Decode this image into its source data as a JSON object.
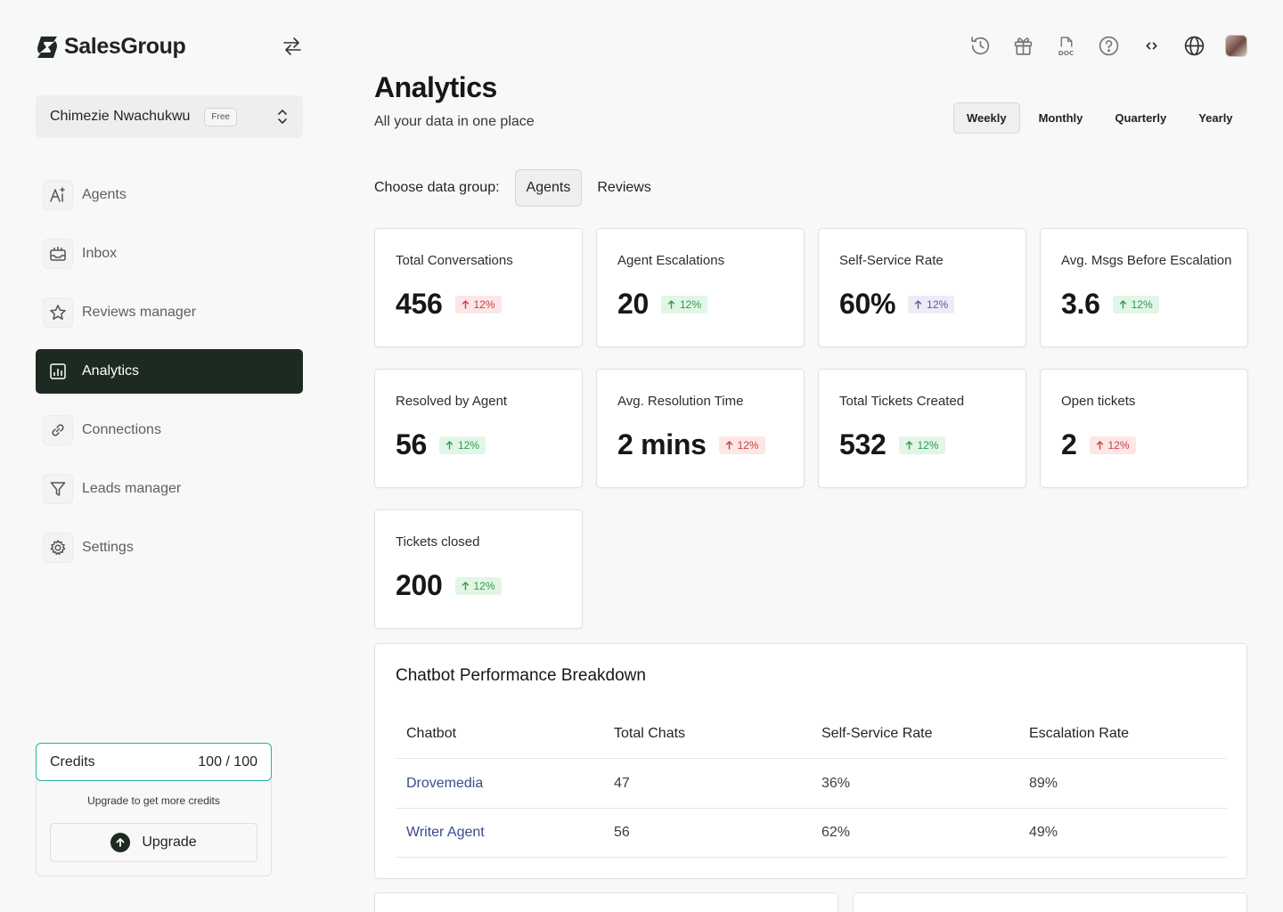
{
  "brand": {
    "name": "SalesGroup"
  },
  "workspace": {
    "name": "Chimezie Nwachukwu",
    "plan": "Free"
  },
  "nav": [
    {
      "label": "Agents",
      "icon": "ai-text-icon"
    },
    {
      "label": "Inbox",
      "icon": "inbox-icon"
    },
    {
      "label": "Reviews manager",
      "icon": "star-icon"
    },
    {
      "label": "Analytics",
      "icon": "analytics-icon",
      "active": true
    },
    {
      "label": "Connections",
      "icon": "link-icon"
    },
    {
      "label": "Leads manager",
      "icon": "filter-icon"
    },
    {
      "label": "Settings",
      "icon": "gear-icon"
    }
  ],
  "credits": {
    "label": "Credits",
    "value": "100 / 100",
    "note": "Upgrade to get more credits",
    "upgrade_label": "Upgrade"
  },
  "top_icons": [
    "history-icon",
    "gift-icon",
    "doc-icon",
    "help-icon",
    "code-icon",
    "globe-icon",
    "avatar"
  ],
  "header": {
    "title": "Analytics",
    "subtitle": "All your data in one place"
  },
  "periods": {
    "options": [
      "Weekly",
      "Monthly",
      "Quarterly",
      "Yearly"
    ],
    "selected": "Weekly"
  },
  "data_group": {
    "label": "Choose data group:",
    "options": [
      "Agents",
      "Reviews"
    ],
    "selected": "Agents"
  },
  "metrics": [
    {
      "title": "Total Conversations",
      "value": "456",
      "change": "12%",
      "tone": "red"
    },
    {
      "title": "Agent Escalations",
      "value": "20",
      "change": "12%",
      "tone": "green"
    },
    {
      "title": "Self-Service Rate",
      "value": "60%",
      "change": "12%",
      "tone": "purple"
    },
    {
      "title": "Avg. Msgs Before Escalation",
      "value": "3.6",
      "change": "12%",
      "tone": "green"
    },
    {
      "title": "Resolved by Agent",
      "value": "56",
      "change": "12%",
      "tone": "green"
    },
    {
      "title": "Avg. Resolution Time",
      "value": "2 mins",
      "change": "12%",
      "tone": "red"
    },
    {
      "title": "Total Tickets Created",
      "value": "532",
      "change": "12%",
      "tone": "green"
    },
    {
      "title": "Open tickets",
      "value": "2",
      "change": "12%",
      "tone": "red"
    },
    {
      "title": "Tickets closed",
      "value": "200",
      "change": "12%",
      "tone": "green"
    }
  ],
  "performance": {
    "title": "Chatbot Performance Breakdown",
    "columns": [
      "Chatbot",
      "Total Chats",
      "Self-Service Rate",
      "Escalation Rate"
    ],
    "rows": [
      [
        "Drovemedia",
        "47",
        "36%",
        "89%"
      ],
      [
        "Writer Agent",
        "56",
        "62%",
        "49%"
      ]
    ]
  },
  "colors": {
    "accent_dark": "#1d2a22",
    "credits_border": "#28b39a",
    "link": "#3a4a8c"
  }
}
